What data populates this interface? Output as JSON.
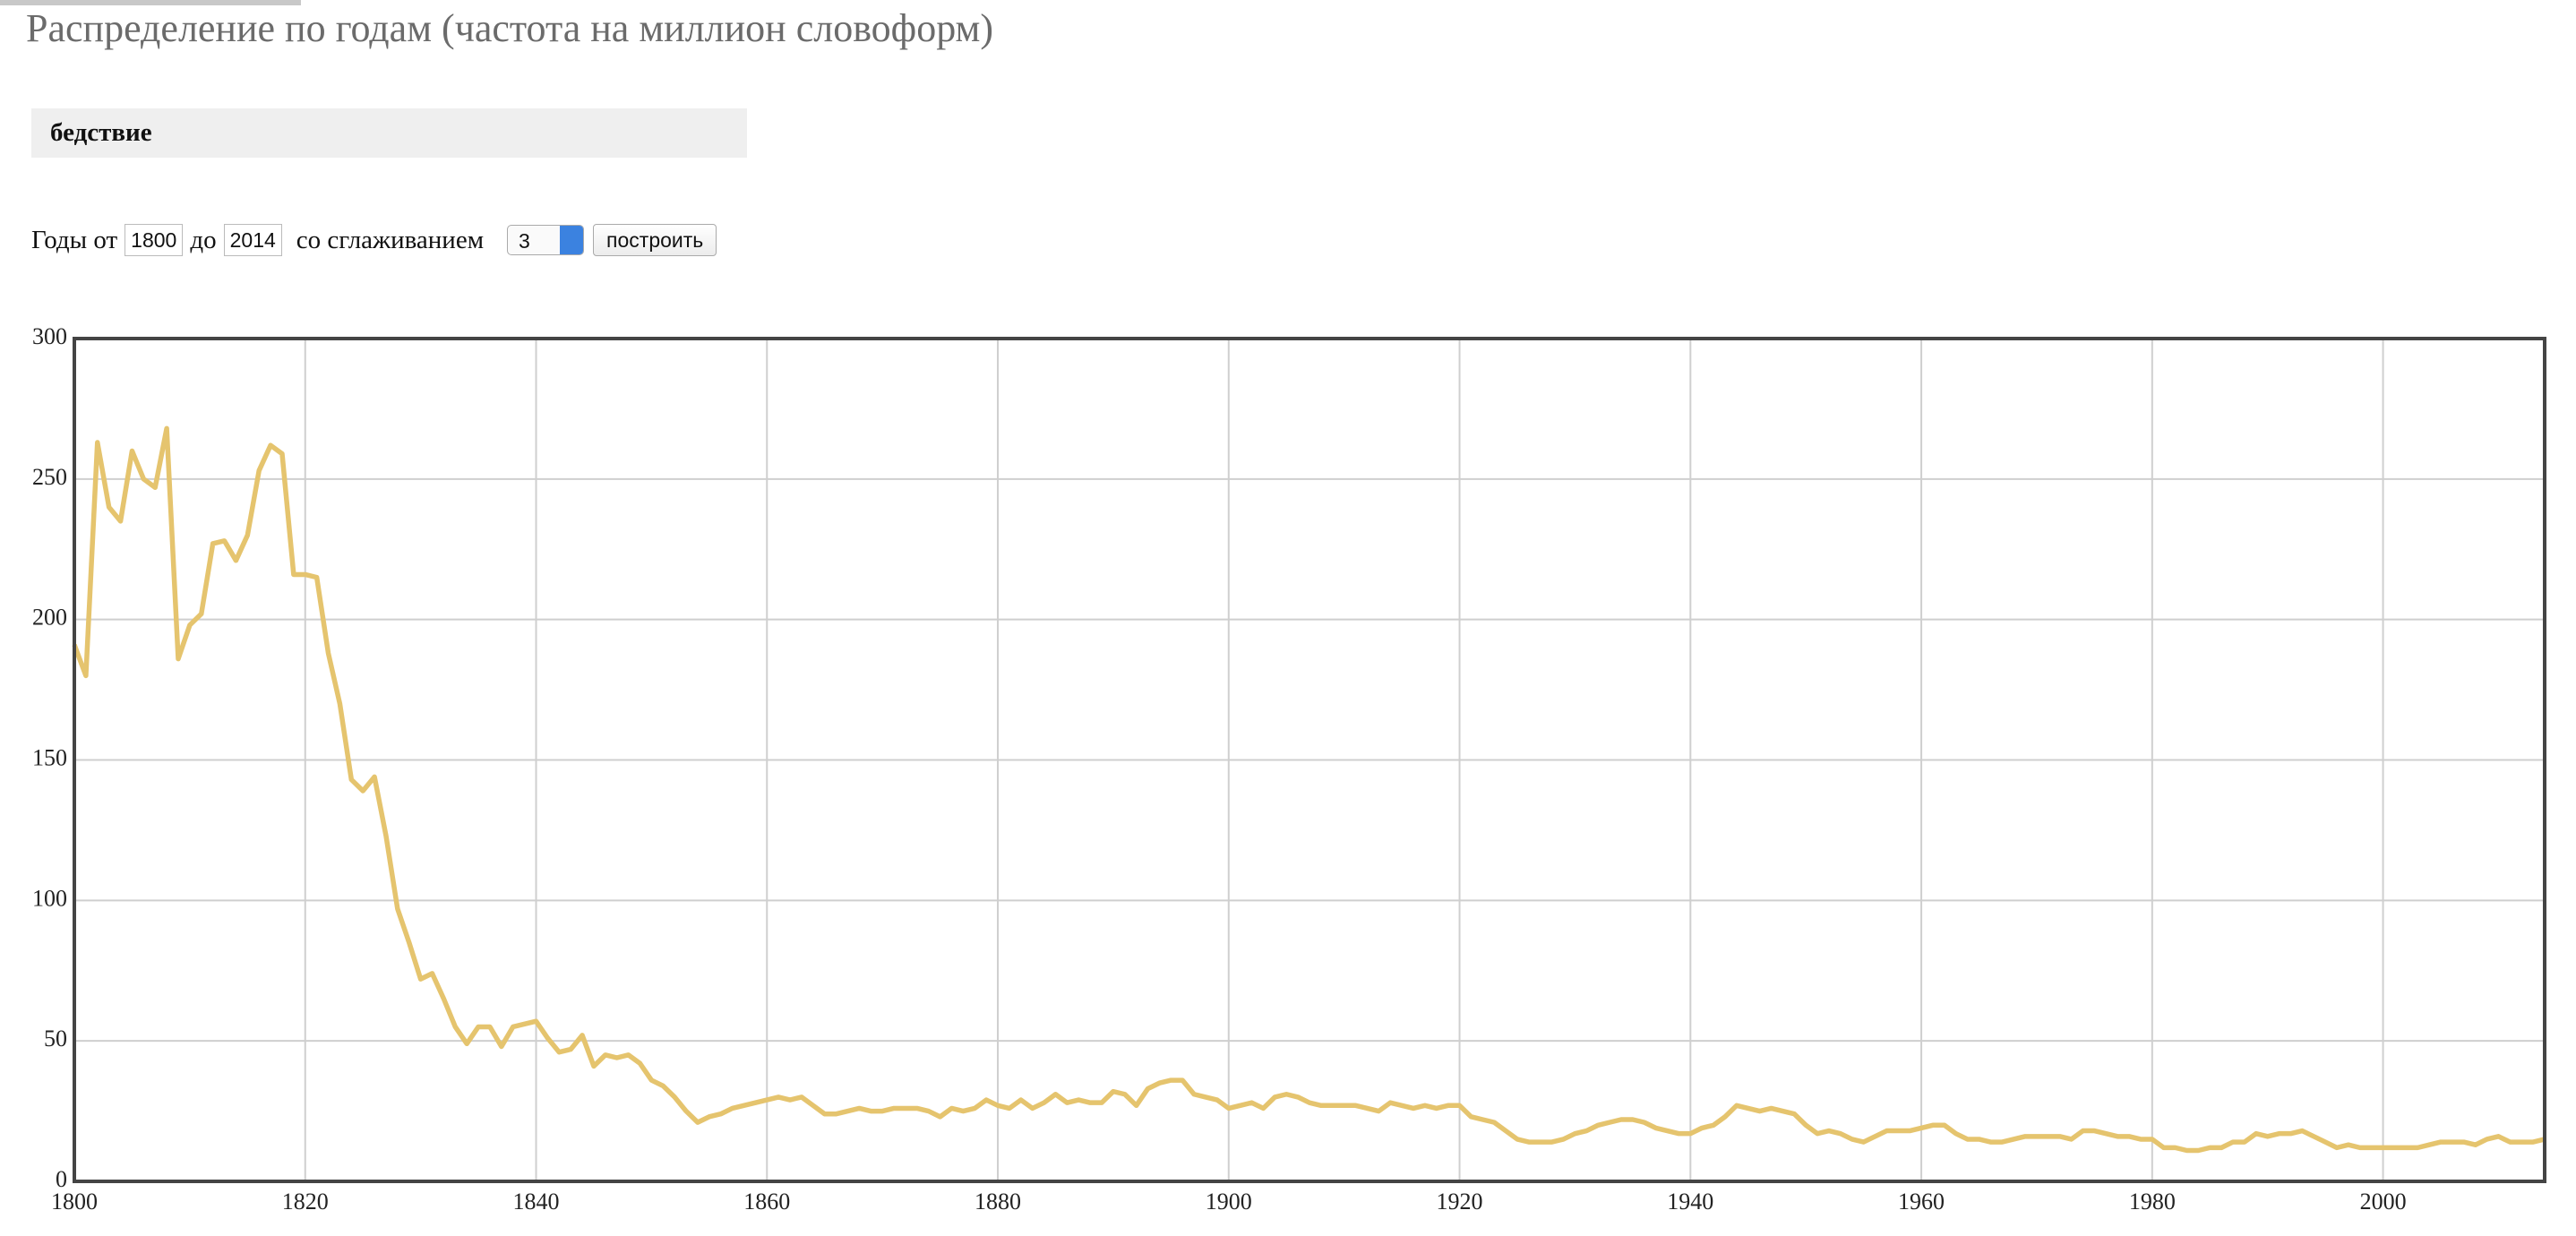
{
  "page": {
    "title": "Распределение по годам (частота на миллион словоформ)",
    "query": "бедствие",
    "controls": {
      "from_label": "Годы от",
      "from_value": "1800",
      "to_label": "до",
      "to_value": "2014",
      "smooth_label": "со сглаживанием",
      "smooth_value": "3",
      "button": "построить"
    }
  },
  "chart_data": {
    "type": "line",
    "x": [
      1800,
      1801,
      1802,
      1803,
      1804,
      1805,
      1806,
      1807,
      1808,
      1809,
      1810,
      1811,
      1812,
      1813,
      1814,
      1815,
      1816,
      1817,
      1818,
      1819,
      1820,
      1821,
      1822,
      1823,
      1824,
      1825,
      1826,
      1827,
      1828,
      1829,
      1830,
      1831,
      1832,
      1833,
      1834,
      1835,
      1836,
      1837,
      1838,
      1839,
      1840,
      1841,
      1842,
      1843,
      1844,
      1845,
      1846,
      1847,
      1848,
      1849,
      1850,
      1851,
      1852,
      1853,
      1854,
      1855,
      1856,
      1857,
      1858,
      1859,
      1860,
      1861,
      1862,
      1863,
      1864,
      1865,
      1866,
      1867,
      1868,
      1869,
      1870,
      1871,
      1872,
      1873,
      1874,
      1875,
      1876,
      1877,
      1878,
      1879,
      1880,
      1881,
      1882,
      1883,
      1884,
      1885,
      1886,
      1887,
      1888,
      1889,
      1890,
      1891,
      1892,
      1893,
      1894,
      1895,
      1896,
      1897,
      1898,
      1899,
      1900,
      1901,
      1902,
      1903,
      1904,
      1905,
      1906,
      1907,
      1908,
      1909,
      1910,
      1911,
      1912,
      1913,
      1914,
      1915,
      1916,
      1917,
      1918,
      1919,
      1920,
      1921,
      1922,
      1923,
      1924,
      1925,
      1926,
      1927,
      1928,
      1929,
      1930,
      1931,
      1932,
      1933,
      1934,
      1935,
      1936,
      1937,
      1938,
      1939,
      1940,
      1941,
      1942,
      1943,
      1944,
      1945,
      1946,
      1947,
      1948,
      1949,
      1950,
      1951,
      1952,
      1953,
      1954,
      1955,
      1956,
      1957,
      1958,
      1959,
      1960,
      1961,
      1962,
      1963,
      1964,
      1965,
      1966,
      1967,
      1968,
      1969,
      1970,
      1971,
      1972,
      1973,
      1974,
      1975,
      1976,
      1977,
      1978,
      1979,
      1980,
      1981,
      1982,
      1983,
      1984,
      1985,
      1986,
      1987,
      1988,
      1989,
      1990,
      1991,
      1992,
      1993,
      1994,
      1995,
      1996,
      1997,
      1998,
      1999,
      2000,
      2001,
      2002,
      2003,
      2004,
      2005,
      2006,
      2007,
      2008,
      2009,
      2010,
      2011,
      2012,
      2013,
      2014
    ],
    "series": [
      {
        "color": "#e5c46e",
        "values": [
          191,
          180,
          263,
          240,
          235,
          260,
          250,
          247,
          268,
          186,
          198,
          202,
          227,
          228,
          221,
          230,
          253,
          262,
          259,
          216,
          216,
          215,
          188,
          170,
          143,
          139,
          144,
          123,
          97,
          85,
          72,
          74,
          65,
          55,
          49,
          55,
          55,
          48,
          55,
          56,
          57,
          51,
          46,
          47,
          52,
          41,
          45,
          44,
          45,
          42,
          36,
          34,
          30,
          25,
          21,
          23,
          24,
          26,
          27,
          28,
          29,
          30,
          29,
          30,
          27,
          24,
          24,
          25,
          26,
          25,
          25,
          26,
          26,
          26,
          25,
          23,
          26,
          25,
          26,
          29,
          27,
          26,
          29,
          26,
          28,
          31,
          28,
          29,
          28,
          28,
          32,
          31,
          27,
          33,
          35,
          36,
          36,
          31,
          30,
          29,
          26,
          27,
          28,
          26,
          30,
          31,
          30,
          28,
          27,
          27,
          27,
          27,
          26,
          25,
          28,
          27,
          26,
          27,
          26,
          27,
          27,
          23,
          22,
          21,
          18,
          15,
          14,
          14,
          14,
          15,
          17,
          18,
          20,
          21,
          22,
          22,
          21,
          19,
          18,
          17,
          17,
          19,
          20,
          23,
          27,
          26,
          25,
          26,
          25,
          24,
          20,
          17,
          18,
          17,
          15,
          14,
          16,
          18,
          18,
          18,
          19,
          20,
          20,
          17,
          15,
          15,
          14,
          14,
          15,
          16,
          16,
          16,
          16,
          15,
          18,
          18,
          17,
          16,
          16,
          15,
          15,
          12,
          12,
          11,
          11,
          12,
          12,
          14,
          14,
          17,
          16,
          17,
          17,
          18,
          16,
          14,
          12,
          13,
          12,
          12,
          12,
          12,
          12,
          12,
          13,
          14,
          14,
          14,
          13,
          15,
          16,
          14,
          14,
          14,
          15
        ]
      }
    ],
    "xlim": [
      1800,
      2014
    ],
    "ylim": [
      0,
      300
    ],
    "xticks": [
      1800,
      1820,
      1840,
      1860,
      1880,
      1900,
      1920,
      1940,
      1960,
      1980,
      2000
    ],
    "yticks": [
      0,
      50,
      100,
      150,
      200,
      250,
      300
    ],
    "grid": true
  }
}
